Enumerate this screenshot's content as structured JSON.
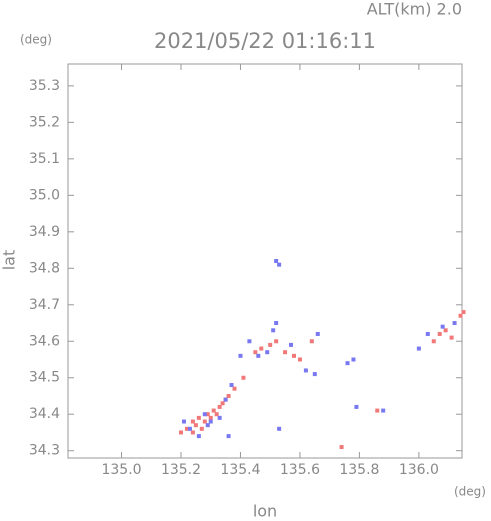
{
  "chart_data": {
    "type": "scatter",
    "title": "2021/05/22 01:16:11",
    "altitude_label": "ALT(km) 2.0",
    "y_unit": "(deg)",
    "x_unit": "(deg)",
    "xlabel": "lon",
    "ylabel": "lat",
    "xlim": [
      134.82,
      136.145
    ],
    "ylim": [
      34.28,
      35.36
    ],
    "xticks": [
      {
        "value": 135.0,
        "label": "135.0"
      },
      {
        "value": 135.2,
        "label": "135.2"
      },
      {
        "value": 135.4,
        "label": "135.4"
      },
      {
        "value": 135.6,
        "label": "135.6"
      },
      {
        "value": 135.8,
        "label": "135.8"
      },
      {
        "value": 136.0,
        "label": "136.0"
      }
    ],
    "yticks": [
      {
        "value": 34.3,
        "label": "34.3"
      },
      34.4,
      34.5,
      34.6,
      34.7,
      34.8,
      34.9,
      {
        "value": 35.0,
        "label": "35.0"
      },
      35.1,
      35.2,
      35.3
    ],
    "series": [
      {
        "color": "#f07878",
        "x": [
          135.22,
          135.24,
          135.25,
          135.26,
          135.27,
          135.28,
          135.29,
          135.31,
          135.32,
          135.33,
          135.34,
          135.35,
          135.36,
          135.38,
          135.41,
          135.45,
          135.47,
          135.5,
          135.52,
          135.55,
          135.58,
          135.6,
          135.64,
          135.74,
          135.86,
          136.05,
          136.07,
          136.09,
          136.11,
          136.14,
          136.15,
          135.2,
          135.24,
          135.3
        ],
        "y": [
          34.36,
          34.38,
          34.37,
          34.39,
          34.36,
          34.38,
          34.4,
          34.41,
          34.4,
          34.42,
          34.43,
          34.44,
          34.45,
          34.47,
          34.5,
          34.57,
          34.58,
          34.59,
          34.6,
          34.57,
          34.56,
          34.55,
          34.6,
          34.31,
          34.41,
          34.6,
          34.62,
          34.63,
          34.61,
          34.67,
          34.68,
          34.35,
          34.35,
          34.39
        ]
      },
      {
        "color": "#7878f0",
        "x": [
          135.21,
          135.23,
          135.26,
          135.28,
          135.3,
          135.33,
          135.35,
          135.37,
          135.4,
          135.43,
          135.46,
          135.49,
          135.51,
          135.52,
          135.53,
          135.57,
          135.62,
          135.65,
          135.66,
          135.76,
          135.78,
          135.79,
          135.88,
          136.0,
          136.03,
          136.08,
          136.12,
          135.53,
          135.52,
          135.36,
          135.29
        ],
        "y": [
          34.38,
          34.36,
          34.34,
          34.4,
          34.38,
          34.39,
          34.44,
          34.48,
          34.56,
          34.6,
          34.56,
          34.57,
          34.63,
          34.65,
          34.81,
          34.59,
          34.52,
          34.51,
          34.62,
          34.54,
          34.55,
          34.42,
          34.41,
          34.58,
          34.62,
          34.64,
          34.65,
          34.36,
          34.82,
          34.34,
          34.37
        ]
      }
    ]
  }
}
